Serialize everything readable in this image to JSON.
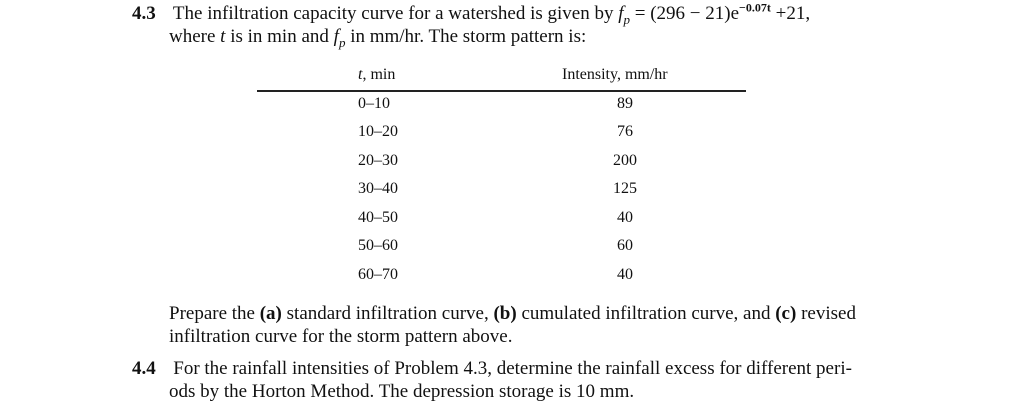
{
  "problem_43": {
    "number": "4.3",
    "line1_intro": "The infiltration capacity curve for a watershed is given by ",
    "f_symbol": "f",
    "f_sub": "p",
    "equation": " = (296 − 21)e",
    "exponent": "−0.07t",
    "equation_tail": " +21,",
    "line2_a": "where ",
    "t_symbol": "t",
    "line2_b": " is in min and ",
    "line2_c": " in mm/hr. The storm pattern is:",
    "after_table_line1_a": "Prepare the ",
    "opt_a": "(a)",
    "after_table_line1_b": " standard infiltration curve, ",
    "opt_b": "(b)",
    "after_table_line1_c": " cumulated infiltration curve, and ",
    "opt_c": "(c)",
    "after_table_line1_d": " revised",
    "after_table_line2": "infiltration curve for the storm pattern above."
  },
  "table": {
    "col1_header_sym": "t",
    "col1_header_rest": ", min",
    "col2_header": "Intensity, mm/hr",
    "rows": [
      {
        "t": "0–10",
        "intensity": "89"
      },
      {
        "t": "10–20",
        "intensity": "76"
      },
      {
        "t": "20–30",
        "intensity": "200"
      },
      {
        "t": "30–40",
        "intensity": "125"
      },
      {
        "t": "40–50",
        "intensity": "40"
      },
      {
        "t": "50–60",
        "intensity": "60"
      },
      {
        "t": "60–70",
        "intensity": "40"
      }
    ]
  },
  "problem_44": {
    "number": "4.4",
    "line1": "For the rainfall intensities of Problem 4.3, determine the rainfall excess for different peri-",
    "line2": "ods by the Horton Method. The depression storage is 10 mm."
  }
}
